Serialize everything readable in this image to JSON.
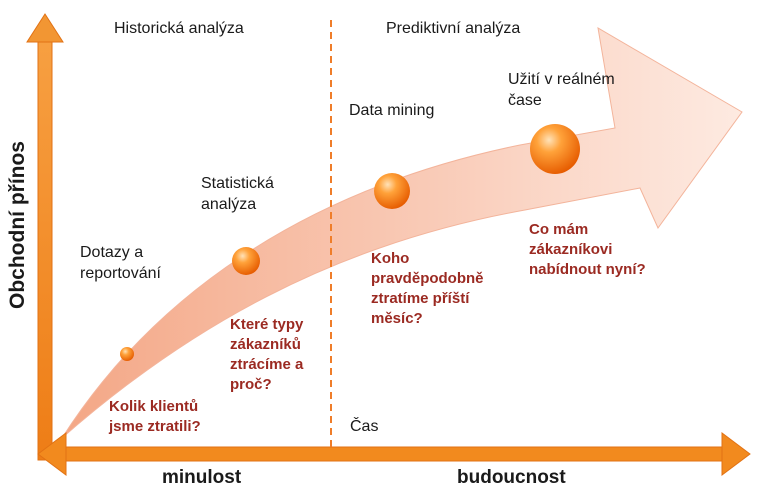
{
  "headers": {
    "historical": "Historická analýza",
    "predictive": "Prediktivní analýza"
  },
  "axes": {
    "y_title": "Obchodní přínos",
    "x_time": "Čas",
    "past": "minulost",
    "future": "budoucnost"
  },
  "stages": [
    {
      "label": "Dotazy a\nreportování",
      "question": "Kolik klientů\njsme ztratili?"
    },
    {
      "label": "Statistická\nanalýza",
      "question": "Které typy\nzákazníků\nztrácíme a\nproč?"
    },
    {
      "label": "Data mining",
      "question": "Koho\npravděpodobně\nztratíme příští\nměsíc?"
    },
    {
      "label": "Užití v reálném\nčase",
      "question": "Co mám\nzákazníkovi\nnabídnout nyní?"
    }
  ],
  "colors": {
    "axis": "#f28a1e",
    "divider": "#ef7d2a",
    "question_text": "#9b2a22",
    "curve": "#f7b39a"
  }
}
